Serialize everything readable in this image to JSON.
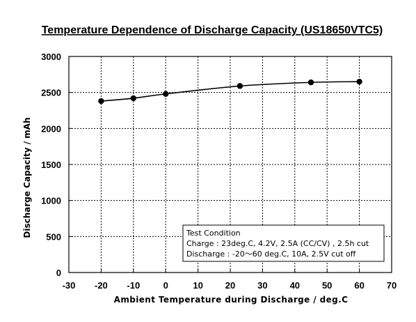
{
  "chart_data": {
    "type": "line",
    "title": "Temperature Dependence of Discharge Capacity (US18650VTC5)",
    "xlabel": "Ambient Temperature during Discharge / deg.C",
    "ylabel": "Discharge Capacity / mAh",
    "xlim": [
      -30,
      70
    ],
    "ylim": [
      0,
      3000
    ],
    "xticks": [
      -30,
      -20,
      -10,
      0,
      10,
      20,
      30,
      40,
      50,
      60,
      70
    ],
    "yticks": [
      0,
      500,
      1000,
      1500,
      2000,
      2500,
      3000
    ],
    "xtick_labels": [
      "-30",
      "-20",
      "-10",
      "0",
      "10",
      "20",
      "30",
      "40",
      "50",
      "60",
      "70"
    ],
    "ytick_labels": [
      "0",
      "500",
      "1000",
      "1500",
      "2000",
      "2500",
      "3000"
    ],
    "grid": true,
    "series": [
      {
        "x": [
          -20,
          -10,
          0,
          23,
          45,
          60
        ],
        "y": [
          2380,
          2420,
          2480,
          2590,
          2640,
          2650
        ]
      }
    ],
    "annotation": {
      "lines": [
        "Test Condition",
        "Charge : 23deg.C, 4.2V, 2.5A (CC/CV) , 2.5h cut",
        "Discharge : -20〜60 deg.C, 10A, 2.5V cut off"
      ]
    },
    "colors": {
      "line": "#000000",
      "marker": "#000000",
      "grid": "#000000",
      "background": "#ffffff"
    }
  }
}
